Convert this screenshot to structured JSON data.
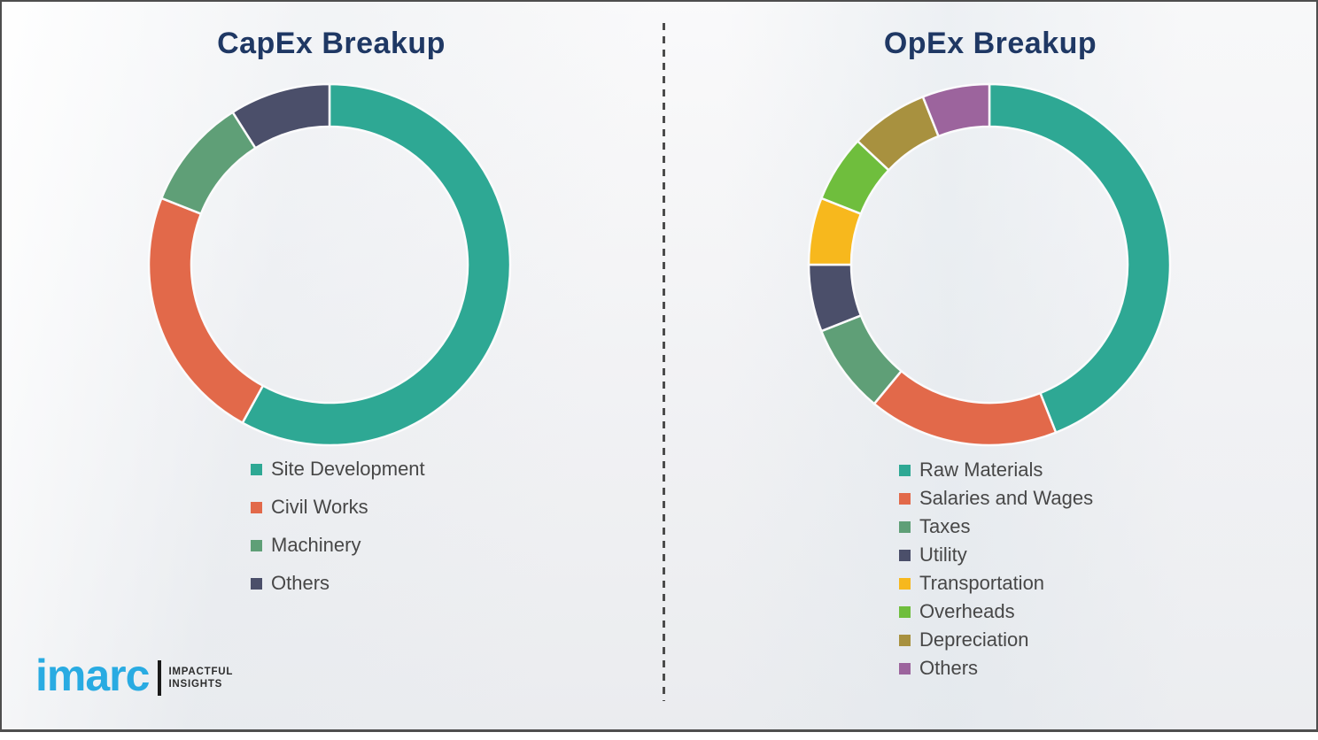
{
  "page": {
    "background_color": "#f3f3f5",
    "border_color": "#4e4e4e",
    "divider_style": "vertical-dashed"
  },
  "logo": {
    "brand": "imarc",
    "brand_color": "#29abe2",
    "tagline_line1": "IMPACTFUL",
    "tagline_line2": "INSIGHTS"
  },
  "titles_color": "#1f3864",
  "chart_data": [
    {
      "type": "pie",
      "subtype": "donut",
      "title": "CapEx Breakup",
      "categories": [
        "Site Development",
        "Civil Works",
        "Machinery",
        "Others"
      ],
      "values": [
        58,
        23,
        10,
        9
      ],
      "colors": [
        "#2ea894",
        "#e2694a",
        "#5f9f77",
        "#4b4f6a"
      ],
      "start_angle_deg": 0,
      "direction": "clockwise",
      "legend_position": "below-left",
      "outer_radius": 204,
      "inner_radius": 156
    },
    {
      "type": "pie",
      "subtype": "donut",
      "title": "OpEx Breakup",
      "categories": [
        "Raw Materials",
        "Salaries and Wages",
        "Taxes",
        "Utility",
        "Transportation",
        "Overheads",
        "Depreciation",
        "Others"
      ],
      "values": [
        44,
        17,
        8,
        6,
        6,
        6,
        7,
        6
      ],
      "colors": [
        "#2ea894",
        "#e2694a",
        "#5f9f77",
        "#4b4f6a",
        "#f7b81d",
        "#6fbe3d",
        "#a8913f",
        "#9c649d"
      ],
      "start_angle_deg": 0,
      "direction": "clockwise",
      "legend_position": "below-left",
      "outer_radius": 204,
      "inner_radius": 156
    }
  ]
}
